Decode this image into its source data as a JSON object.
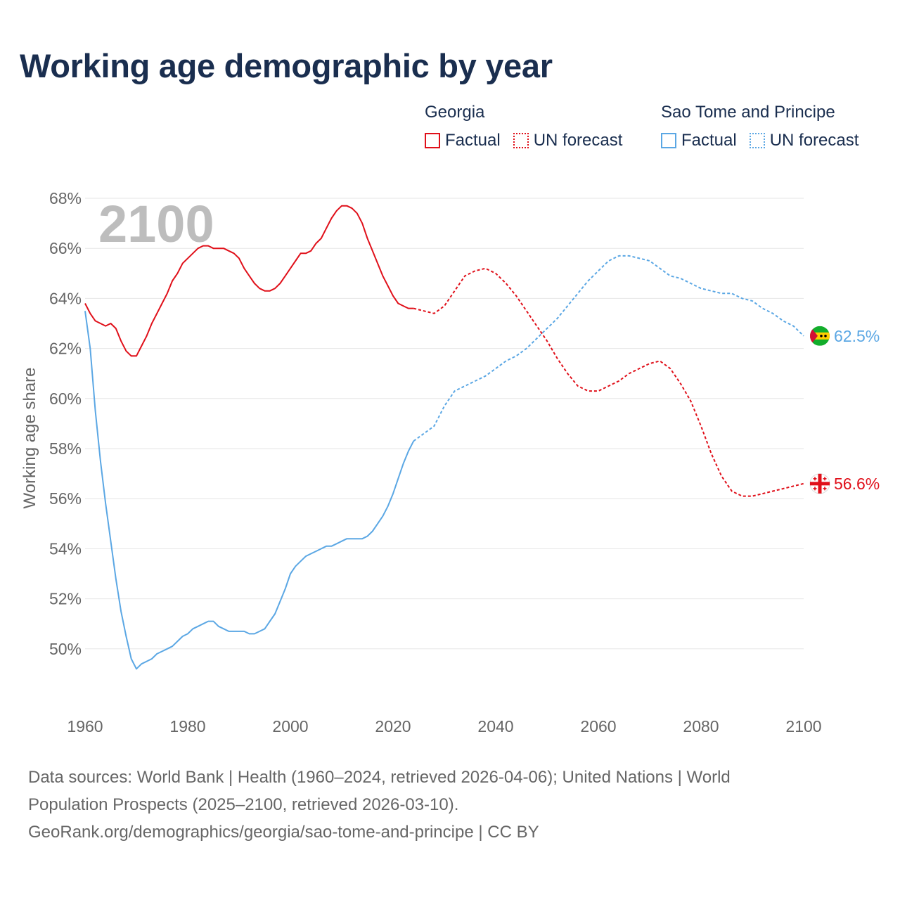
{
  "title": "Working age demographic by year",
  "legend": [
    {
      "name": "Georgia",
      "color": "#e0101a",
      "factual_label": "Factual",
      "forecast_label": "UN forecast"
    },
    {
      "name": "Sao Tome and Principe",
      "color": "#5ba7e4",
      "factual_label": "Factual",
      "forecast_label": "UN forecast"
    }
  ],
  "year_watermark": "2100",
  "sources": {
    "line1": "Data sources: World Bank | Health (1960–2024, retrieved 2026-04-06); United Nations | World",
    "line2": "Population Prospects (2025–2100, retrieved 2026-03-10).",
    "line3": "GeoRank.org/demographics/georgia/sao-tome-and-principe | CC BY"
  },
  "chart_data": {
    "type": "line",
    "title": "Working age demographic by year",
    "ylabel": "Working age share",
    "xlabel": "",
    "xlim": [
      1960,
      2100
    ],
    "ylim": [
      48,
      68
    ],
    "x_ticks": [
      1960,
      1980,
      2000,
      2020,
      2040,
      2060,
      2080,
      2100
    ],
    "y_ticks": [
      50,
      52,
      54,
      56,
      58,
      60,
      62,
      64,
      66,
      68
    ],
    "y_tick_suffix": "%",
    "grid": true,
    "series": [
      {
        "name": "Georgia",
        "color": "#e0101a",
        "end_label": "56.6%",
        "factual": {
          "x": [
            1960,
            1961,
            1962,
            1963,
            1964,
            1965,
            1966,
            1967,
            1968,
            1969,
            1970,
            1971,
            1972,
            1973,
            1974,
            1975,
            1976,
            1977,
            1978,
            1979,
            1980,
            1981,
            1982,
            1983,
            1984,
            1985,
            1986,
            1987,
            1988,
            1989,
            1990,
            1991,
            1992,
            1993,
            1994,
            1995,
            1996,
            1997,
            1998,
            1999,
            2000,
            2001,
            2002,
            2003,
            2004,
            2005,
            2006,
            2007,
            2008,
            2009,
            2010,
            2011,
            2012,
            2013,
            2014,
            2015,
            2016,
            2017,
            2018,
            2019,
            2020,
            2021,
            2022,
            2023,
            2024
          ],
          "y": [
            63.8,
            63.4,
            63.1,
            63.0,
            62.9,
            63.0,
            62.8,
            62.3,
            61.9,
            61.7,
            61.7,
            62.1,
            62.5,
            63.0,
            63.4,
            63.8,
            64.2,
            64.7,
            65.0,
            65.4,
            65.6,
            65.8,
            66.0,
            66.1,
            66.1,
            66.0,
            66.0,
            66.0,
            65.9,
            65.8,
            65.6,
            65.2,
            64.9,
            64.6,
            64.4,
            64.3,
            64.3,
            64.4,
            64.6,
            64.9,
            65.2,
            65.5,
            65.8,
            65.8,
            65.9,
            66.2,
            66.4,
            66.8,
            67.2,
            67.5,
            67.7,
            67.7,
            67.6,
            67.4,
            67.0,
            66.4,
            65.9,
            65.4,
            64.9,
            64.5,
            64.1,
            63.8,
            63.7,
            63.6,
            63.6
          ]
        },
        "forecast": {
          "x": [
            2024,
            2026,
            2028,
            2030,
            2032,
            2034,
            2036,
            2038,
            2040,
            2042,
            2044,
            2046,
            2048,
            2050,
            2052,
            2054,
            2056,
            2058,
            2060,
            2062,
            2064,
            2066,
            2068,
            2070,
            2072,
            2074,
            2076,
            2078,
            2080,
            2082,
            2084,
            2086,
            2088,
            2090,
            2092,
            2094,
            2096,
            2098,
            2100
          ],
          "y": [
            63.6,
            63.5,
            63.4,
            63.7,
            64.3,
            64.9,
            65.1,
            65.2,
            65.0,
            64.6,
            64.1,
            63.5,
            62.9,
            62.3,
            61.6,
            61.0,
            60.5,
            60.3,
            60.3,
            60.5,
            60.7,
            61.0,
            61.2,
            61.4,
            61.5,
            61.2,
            60.6,
            59.9,
            58.9,
            57.8,
            56.9,
            56.3,
            56.1,
            56.1,
            56.2,
            56.3,
            56.4,
            56.5,
            56.6
          ]
        }
      },
      {
        "name": "Sao Tome and Principe",
        "color": "#5ba7e4",
        "end_label": "62.5%",
        "factual": {
          "x": [
            1960,
            1961,
            1962,
            1963,
            1964,
            1965,
            1966,
            1967,
            1968,
            1969,
            1970,
            1971,
            1972,
            1973,
            1974,
            1975,
            1976,
            1977,
            1978,
            1979,
            1980,
            1981,
            1982,
            1983,
            1984,
            1985,
            1986,
            1987,
            1988,
            1989,
            1990,
            1991,
            1992,
            1993,
            1994,
            1995,
            1996,
            1997,
            1998,
            1999,
            2000,
            2001,
            2002,
            2003,
            2004,
            2005,
            2006,
            2007,
            2008,
            2009,
            2010,
            2011,
            2012,
            2013,
            2014,
            2015,
            2016,
            2017,
            2018,
            2019,
            2020,
            2021,
            2022,
            2023,
            2024
          ],
          "y": [
            63.5,
            62.0,
            59.5,
            57.5,
            55.8,
            54.3,
            52.8,
            51.5,
            50.5,
            49.6,
            49.2,
            49.4,
            49.5,
            49.6,
            49.8,
            49.9,
            50.0,
            50.1,
            50.3,
            50.5,
            50.6,
            50.8,
            50.9,
            51.0,
            51.1,
            51.1,
            50.9,
            50.8,
            50.7,
            50.7,
            50.7,
            50.7,
            50.6,
            50.6,
            50.7,
            50.8,
            51.1,
            51.4,
            51.9,
            52.4,
            53.0,
            53.3,
            53.5,
            53.7,
            53.8,
            53.9,
            54.0,
            54.1,
            54.1,
            54.2,
            54.3,
            54.4,
            54.4,
            54.4,
            54.4,
            54.5,
            54.7,
            55.0,
            55.3,
            55.7,
            56.2,
            56.8,
            57.4,
            57.9,
            58.3
          ]
        },
        "forecast": {
          "x": [
            2024,
            2026,
            2028,
            2030,
            2032,
            2034,
            2036,
            2038,
            2040,
            2042,
            2044,
            2046,
            2048,
            2050,
            2052,
            2054,
            2056,
            2058,
            2060,
            2062,
            2064,
            2066,
            2068,
            2070,
            2072,
            2074,
            2076,
            2078,
            2080,
            2082,
            2084,
            2086,
            2088,
            2090,
            2092,
            2094,
            2096,
            2098,
            2100
          ],
          "y": [
            58.3,
            58.6,
            58.9,
            59.7,
            60.3,
            60.5,
            60.7,
            60.9,
            61.2,
            61.5,
            61.7,
            62.0,
            62.4,
            62.8,
            63.2,
            63.7,
            64.2,
            64.7,
            65.1,
            65.5,
            65.7,
            65.7,
            65.6,
            65.5,
            65.2,
            64.9,
            64.8,
            64.6,
            64.4,
            64.3,
            64.2,
            64.2,
            64.0,
            63.9,
            63.6,
            63.4,
            63.1,
            62.9,
            62.5
          ]
        }
      }
    ]
  }
}
